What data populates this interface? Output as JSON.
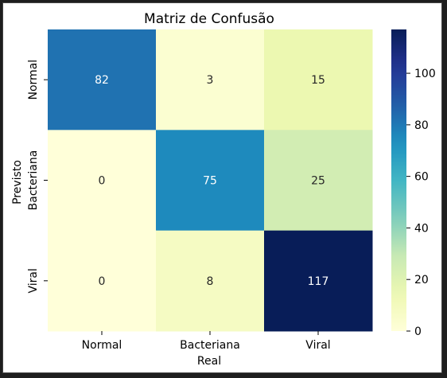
{
  "chart_data": {
    "type": "heatmap",
    "title": "Matriz de Confusão",
    "xlabel": "Real",
    "ylabel": "Previsto",
    "x_categories": [
      "Normal",
      "Bacteriana",
      "Viral"
    ],
    "y_categories": [
      "Normal",
      "Bacteriana",
      "Viral"
    ],
    "values": [
      [
        82,
        3,
        15
      ],
      [
        0,
        75,
        25
      ],
      [
        0,
        8,
        117
      ]
    ],
    "colormap": "YlGnBu",
    "vmin": 0,
    "vmax": 117,
    "colorbar_ticks": [
      0,
      20,
      40,
      60,
      80,
      100
    ]
  }
}
